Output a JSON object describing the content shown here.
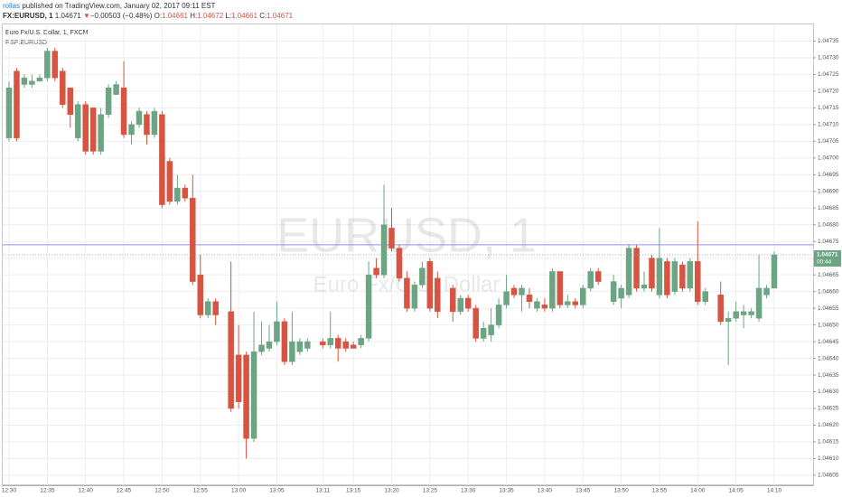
{
  "header": {
    "author": "rollas",
    "published": "published on TradingView.com, January 02, 2017 09:11 EST",
    "symbol": "FX:EURUSD, 1",
    "last": "1.04671",
    "arrow": "▼",
    "change": "−0.00503 (−0.48%)",
    "quote": [
      {
        "label": "O:",
        "value": "1.04661"
      },
      {
        "label": "H:",
        "value": "1.04672"
      },
      {
        "label": "L:",
        "value": "1.04661"
      },
      {
        "label": "C:",
        "value": "1.04671"
      }
    ]
  },
  "chart_data": {
    "type": "candlestick",
    "title": "Euro Fx/U.S. Dollar, 1, FXCM",
    "subtitle": "RSP:EURUSD",
    "watermark": "EURUSD, 1",
    "watermark_sub": "Euro Fx/U.S. Dollar",
    "up_color": "#6ba583",
    "down_color": "#d75442",
    "grid": true,
    "hline": 1.04674,
    "hline_color": "#8f90e6",
    "countdown": "00:44",
    "x": [
      "12:30",
      "12:31",
      "12:32",
      "12:33",
      "12:34",
      "12:35",
      "12:36",
      "12:37",
      "12:38",
      "12:39",
      "12:40",
      "12:41",
      "12:42",
      "12:43",
      "12:44",
      "12:45",
      "12:46",
      "12:47",
      "12:48",
      "12:49",
      "12:50",
      "12:51",
      "12:52",
      "12:53",
      "12:54",
      "12:55",
      "12:56",
      "12:57",
      "12:59",
      "13:00",
      "13:01",
      "13:02",
      "13:03",
      "13:04",
      "13:05",
      "13:06",
      "13:07",
      "13:08",
      "13:09",
      "13:11",
      "13:12",
      "13:13",
      "13:14",
      "13:15",
      "13:16",
      "13:17",
      "13:18",
      "13:19",
      "13:20",
      "13:21",
      "13:22",
      "13:23",
      "13:24",
      "13:25",
      "13:26",
      "13:28",
      "13:29",
      "13:30",
      "13:31",
      "13:32",
      "13:33",
      "13:34",
      "13:35",
      "13:36",
      "13:37",
      "13:38",
      "13:39",
      "13:40",
      "13:41",
      "13:42",
      "13:43",
      "13:44",
      "13:45",
      "13:46",
      "13:47",
      "13:49",
      "13:50",
      "13:51",
      "13:52",
      "13:53",
      "13:54",
      "13:55",
      "13:56",
      "13:57",
      "13:58",
      "13:59",
      "14:00",
      "14:01",
      "14:03",
      "14:04",
      "14:05",
      "14:06",
      "14:07",
      "14:08",
      "14:09",
      "14:10"
    ],
    "open": [
      1.04706,
      1.04726,
      1.04722,
      1.04722,
      1.04723,
      1.04724,
      1.04732,
      1.04726,
      1.04721,
      1.04706,
      1.04716,
      1.04715,
      1.04702,
      1.04713,
      1.04719,
      1.04721,
      1.04707,
      1.0471,
      1.04713,
      1.04707,
      1.04713,
      1.04699,
      1.04687,
      1.04691,
      1.04688,
      1.04665,
      1.04653,
      1.04657,
      1.04654,
      1.04641,
      1.04641,
      1.04616,
      1.04642,
      1.04643,
      1.04645,
      1.04651,
      1.04639,
      1.04642,
      1.04643,
      1.04645,
      1.04644,
      1.04646,
      1.04645,
      1.04644,
      1.04644,
      1.04646,
      1.04667,
      1.04665,
      1.04679,
      1.04673,
      1.04664,
      1.04655,
      1.04662,
      1.04669,
      1.04664,
      1.04661,
      1.04654,
      1.04658,
      1.04655,
      1.04646,
      1.04647,
      1.0465,
      1.04656,
      1.04661,
      1.04659,
      1.04659,
      1.04655,
      1.04656,
      1.04655,
      1.04666,
      1.04656,
      1.04657,
      1.04656,
      1.04661,
      1.04666,
      1.04657,
      1.04658,
      1.04659,
      1.04673,
      1.04661,
      1.0467,
      1.04659,
      1.04669,
      1.0466,
      1.04668,
      1.04661,
      1.04669,
      1.04657,
      1.04659,
      1.04651,
      1.04652,
      1.04653,
      1.04653,
      1.04652,
      1.04659,
      1.04661
    ],
    "high": [
      1.04723,
      1.04727,
      1.04725,
      1.04725,
      1.04725,
      1.04733,
      1.04733,
      1.04727,
      1.04721,
      1.04717,
      1.04717,
      1.04715,
      1.04715,
      1.04722,
      1.04723,
      1.04729,
      1.04711,
      1.04715,
      1.04714,
      1.04715,
      1.04714,
      1.047,
      1.04695,
      1.04692,
      1.04695,
      1.04671,
      1.04658,
      1.04658,
      1.04669,
      1.0465,
      1.04642,
      1.04654,
      1.04651,
      1.0465,
      1.04657,
      1.04652,
      1.04654,
      1.04646,
      1.04646,
      1.04646,
      1.04654,
      1.04647,
      1.04646,
      1.04645,
      1.04647,
      1.04669,
      1.0467,
      1.04692,
      1.04685,
      1.04674,
      1.04666,
      1.04663,
      1.04669,
      1.0467,
      1.04666,
      1.04662,
      1.04659,
      1.04659,
      1.04656,
      1.04651,
      1.04655,
      1.04658,
      1.04665,
      1.04662,
      1.04662,
      1.04661,
      1.04658,
      1.04658,
      1.04667,
      1.04666,
      1.04659,
      1.04658,
      1.04662,
      1.04667,
      1.04667,
      1.04665,
      1.04662,
      1.04674,
      1.04674,
      1.04666,
      1.04671,
      1.04679,
      1.0467,
      1.0467,
      1.04669,
      1.0467,
      1.04681,
      1.04661,
      1.04663,
      1.04654,
      1.04657,
      1.04656,
      1.04655,
      1.04671,
      1.04662,
      1.04672
    ],
    "low": [
      1.04705,
      1.04705,
      1.04721,
      1.04721,
      1.04723,
      1.04723,
      1.04723,
      1.04715,
      1.04709,
      1.04705,
      1.04701,
      1.04701,
      1.04701,
      1.04712,
      1.04719,
      1.04706,
      1.04704,
      1.04709,
      1.04704,
      1.04706,
      1.04685,
      1.04686,
      1.04686,
      1.04687,
      1.04662,
      1.04652,
      1.04652,
      1.0465,
      1.04624,
      1.04625,
      1.0461,
      1.04615,
      1.04641,
      1.04642,
      1.04644,
      1.04638,
      1.04638,
      1.04641,
      1.04642,
      1.04643,
      1.04643,
      1.04639,
      1.04642,
      1.04643,
      1.04643,
      1.04645,
      1.04664,
      1.04664,
      1.04672,
      1.04663,
      1.04654,
      1.04654,
      1.04661,
      1.04654,
      1.04652,
      1.04651,
      1.04653,
      1.04654,
      1.04645,
      1.04645,
      1.04645,
      1.04649,
      1.04655,
      1.04658,
      1.04654,
      1.04655,
      1.04654,
      1.04654,
      1.04654,
      1.04655,
      1.04655,
      1.04655,
      1.04655,
      1.0466,
      1.04662,
      1.04656,
      1.04655,
      1.04658,
      1.0466,
      1.0466,
      1.0466,
      1.04658,
      1.04658,
      1.04659,
      1.0466,
      1.0466,
      1.04656,
      1.04656,
      1.0465,
      1.04638,
      1.04651,
      1.04649,
      1.04652,
      1.04651,
      1.04658,
      1.04661
    ],
    "close": [
      1.04721,
      1.04706,
      1.04724,
      1.04723,
      1.04724,
      1.04732,
      1.04724,
      1.04716,
      1.04713,
      1.04716,
      1.04702,
      1.04702,
      1.04713,
      1.04721,
      1.04722,
      1.04707,
      1.0471,
      1.04714,
      1.04707,
      1.04714,
      1.04686,
      1.04687,
      1.04691,
      1.04688,
      1.04663,
      1.04653,
      1.04657,
      1.04653,
      1.04625,
      1.04627,
      1.04616,
      1.04642,
      1.04644,
      1.04645,
      1.04651,
      1.04639,
      1.04645,
      1.04645,
      1.04645,
      1.04644,
      1.04646,
      1.04643,
      1.04643,
      1.04643,
      1.04646,
      1.04665,
      1.04665,
      1.0468,
      1.04673,
      1.04664,
      1.04655,
      1.04662,
      1.04667,
      1.04655,
      1.04654,
      1.04654,
      1.04658,
      1.04655,
      1.04646,
      1.04649,
      1.0465,
      1.04656,
      1.0466,
      1.04659,
      1.04661,
      1.04657,
      1.04657,
      1.04655,
      1.04666,
      1.04656,
      1.04657,
      1.04656,
      1.04661,
      1.04666,
      1.04663,
      1.04663,
      1.04661,
      1.04673,
      1.04661,
      1.04662,
      1.04661,
      1.0467,
      1.04659,
      1.04669,
      1.04661,
      1.04669,
      1.04657,
      1.0466,
      1.04651,
      1.04652,
      1.04654,
      1.04654,
      1.04654,
      1.04661,
      1.04661,
      1.04671
    ],
    "ylim": [
      1.04602,
      1.0474
    ],
    "yticks": [
      {
        "value": 1.04605,
        "label": "1.04605"
      },
      {
        "value": 1.0461,
        "label": "1.04610"
      },
      {
        "value": 1.04615,
        "label": "1.04615"
      },
      {
        "value": 1.0462,
        "label": "1.04620"
      },
      {
        "value": 1.04625,
        "label": "1.04625"
      },
      {
        "value": 1.0463,
        "label": "1.04630"
      },
      {
        "value": 1.04635,
        "label": "1.04635"
      },
      {
        "value": 1.0464,
        "label": "1.04640"
      },
      {
        "value": 1.04645,
        "label": "1.04645"
      },
      {
        "value": 1.0465,
        "label": "1.04650"
      },
      {
        "value": 1.04655,
        "label": "1.04655"
      },
      {
        "value": 1.0466,
        "label": "1.04660"
      },
      {
        "value": 1.04665,
        "label": "1.04665"
      },
      {
        "value": 1.0467,
        "label": "1.04670"
      },
      {
        "value": 1.04675,
        "label": "1.04675"
      },
      {
        "value": 1.0468,
        "label": "1.04680"
      },
      {
        "value": 1.04685,
        "label": "1.04685"
      },
      {
        "value": 1.0469,
        "label": "1.04690"
      },
      {
        "value": 1.04695,
        "label": "1.04695"
      },
      {
        "value": 1.047,
        "label": "1.04700"
      },
      {
        "value": 1.04705,
        "label": "1.04705"
      },
      {
        "value": 1.0471,
        "label": "1.04710"
      },
      {
        "value": 1.04715,
        "label": "1.04715"
      },
      {
        "value": 1.0472,
        "label": "1.04720"
      },
      {
        "value": 1.04725,
        "label": "1.04725"
      },
      {
        "value": 1.0473,
        "label": "1.04730"
      },
      {
        "value": 1.04735,
        "label": "1.04735"
      }
    ],
    "xticks": [
      "12:30",
      "12:35",
      "12:40",
      "12:45",
      "12:50",
      "12:55",
      "13:00",
      "13:05",
      "13:11",
      "13:15",
      "13:20",
      "13:25",
      "13:30",
      "13:35",
      "13:40",
      "13:45",
      "13:50",
      "13:55",
      "14:00",
      "14:05",
      "14:10"
    ]
  }
}
